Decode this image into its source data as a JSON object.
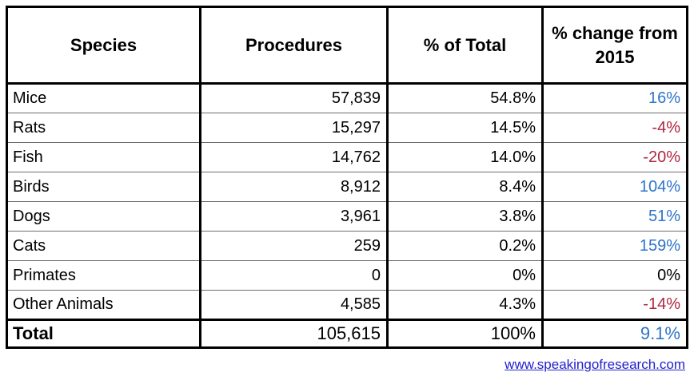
{
  "table": {
    "columns": [
      {
        "label": "Species"
      },
      {
        "label": "Procedures"
      },
      {
        "label": "% of Total"
      },
      {
        "label": "% change from 2015"
      }
    ],
    "rows": [
      {
        "species": "Mice",
        "procedures": "57,839",
        "pct_total": "54.8%",
        "pct_change": "16%",
        "change_color": "positive"
      },
      {
        "species": "Rats",
        "procedures": "15,297",
        "pct_total": "14.5%",
        "pct_change": "-4%",
        "change_color": "negative"
      },
      {
        "species": "Fish",
        "procedures": "14,762",
        "pct_total": "14.0%",
        "pct_change": "-20%",
        "change_color": "negative"
      },
      {
        "species": "Birds",
        "procedures": "8,912",
        "pct_total": "8.4%",
        "pct_change": "104%",
        "change_color": "positive"
      },
      {
        "species": "Dogs",
        "procedures": "3,961",
        "pct_total": "3.8%",
        "pct_change": "51%",
        "change_color": "positive"
      },
      {
        "species": "Cats",
        "procedures": "259",
        "pct_total": "0.2%",
        "pct_change": "159%",
        "change_color": "positive"
      },
      {
        "species": "Primates",
        "procedures": "0",
        "pct_total": "0%",
        "pct_change": "0%",
        "change_color": "neutral"
      },
      {
        "species": "Other Animals",
        "procedures": "4,585",
        "pct_total": "4.3%",
        "pct_change": "-14%",
        "change_color": "negative"
      }
    ],
    "total": {
      "species": "Total",
      "procedures": "105,615",
      "pct_total": "100%",
      "pct_change": "9.1%",
      "change_color": "positive"
    }
  },
  "footer": {
    "link_text": "www.speakingofresearch.com"
  },
  "colors": {
    "positive_change": "#2E74C9",
    "negative_change": "#B02742",
    "neutral_change": "#000000",
    "link": "#2121CC",
    "border": "#000000",
    "row_divider": "#6d6d6d"
  },
  "chart_data": {
    "type": "table",
    "title": "",
    "columns": [
      "Species",
      "Procedures",
      "% of Total",
      "% change from 2015"
    ],
    "rows": [
      [
        "Mice",
        57839,
        "54.8%",
        "16%"
      ],
      [
        "Rats",
        15297,
        "14.5%",
        "-4%"
      ],
      [
        "Fish",
        14762,
        "14.0%",
        "-20%"
      ],
      [
        "Birds",
        8912,
        "8.4%",
        "104%"
      ],
      [
        "Dogs",
        3961,
        "3.8%",
        "51%"
      ],
      [
        "Cats",
        259,
        "0.2%",
        "159%"
      ],
      [
        "Primates",
        0,
        "0%",
        "0%"
      ],
      [
        "Other Animals",
        4585,
        "4.3%",
        "-14%"
      ],
      [
        "Total",
        105615,
        "100%",
        "9.1%"
      ]
    ],
    "notes": "Positive % changes rendered in blue, negative in dark red, zero in black"
  }
}
